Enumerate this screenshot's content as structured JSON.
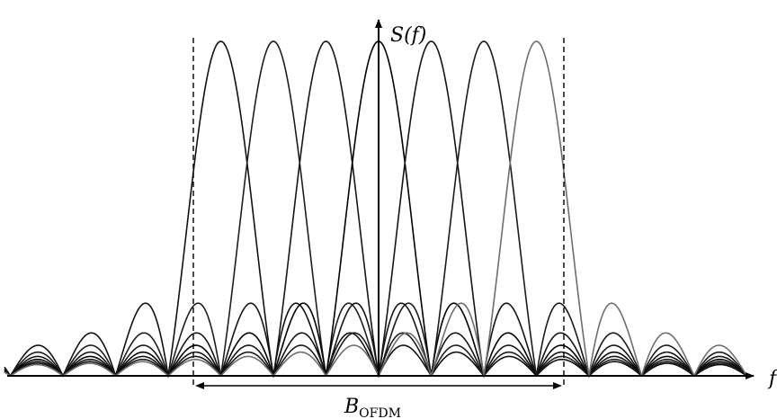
{
  "diagram": {
    "y_axis_label": "S(f)",
    "x_axis_label": "f",
    "bandwidth_label": "B",
    "bandwidth_subscript": "OFDM",
    "subcarrier_count": 7,
    "line_color": "#000000",
    "subcarrier_colors": [
      "#111111",
      "#1e1e1e",
      "#161616",
      "#000000",
      "#141414",
      "#1a1a1a",
      "#6e6e6e"
    ]
  }
}
